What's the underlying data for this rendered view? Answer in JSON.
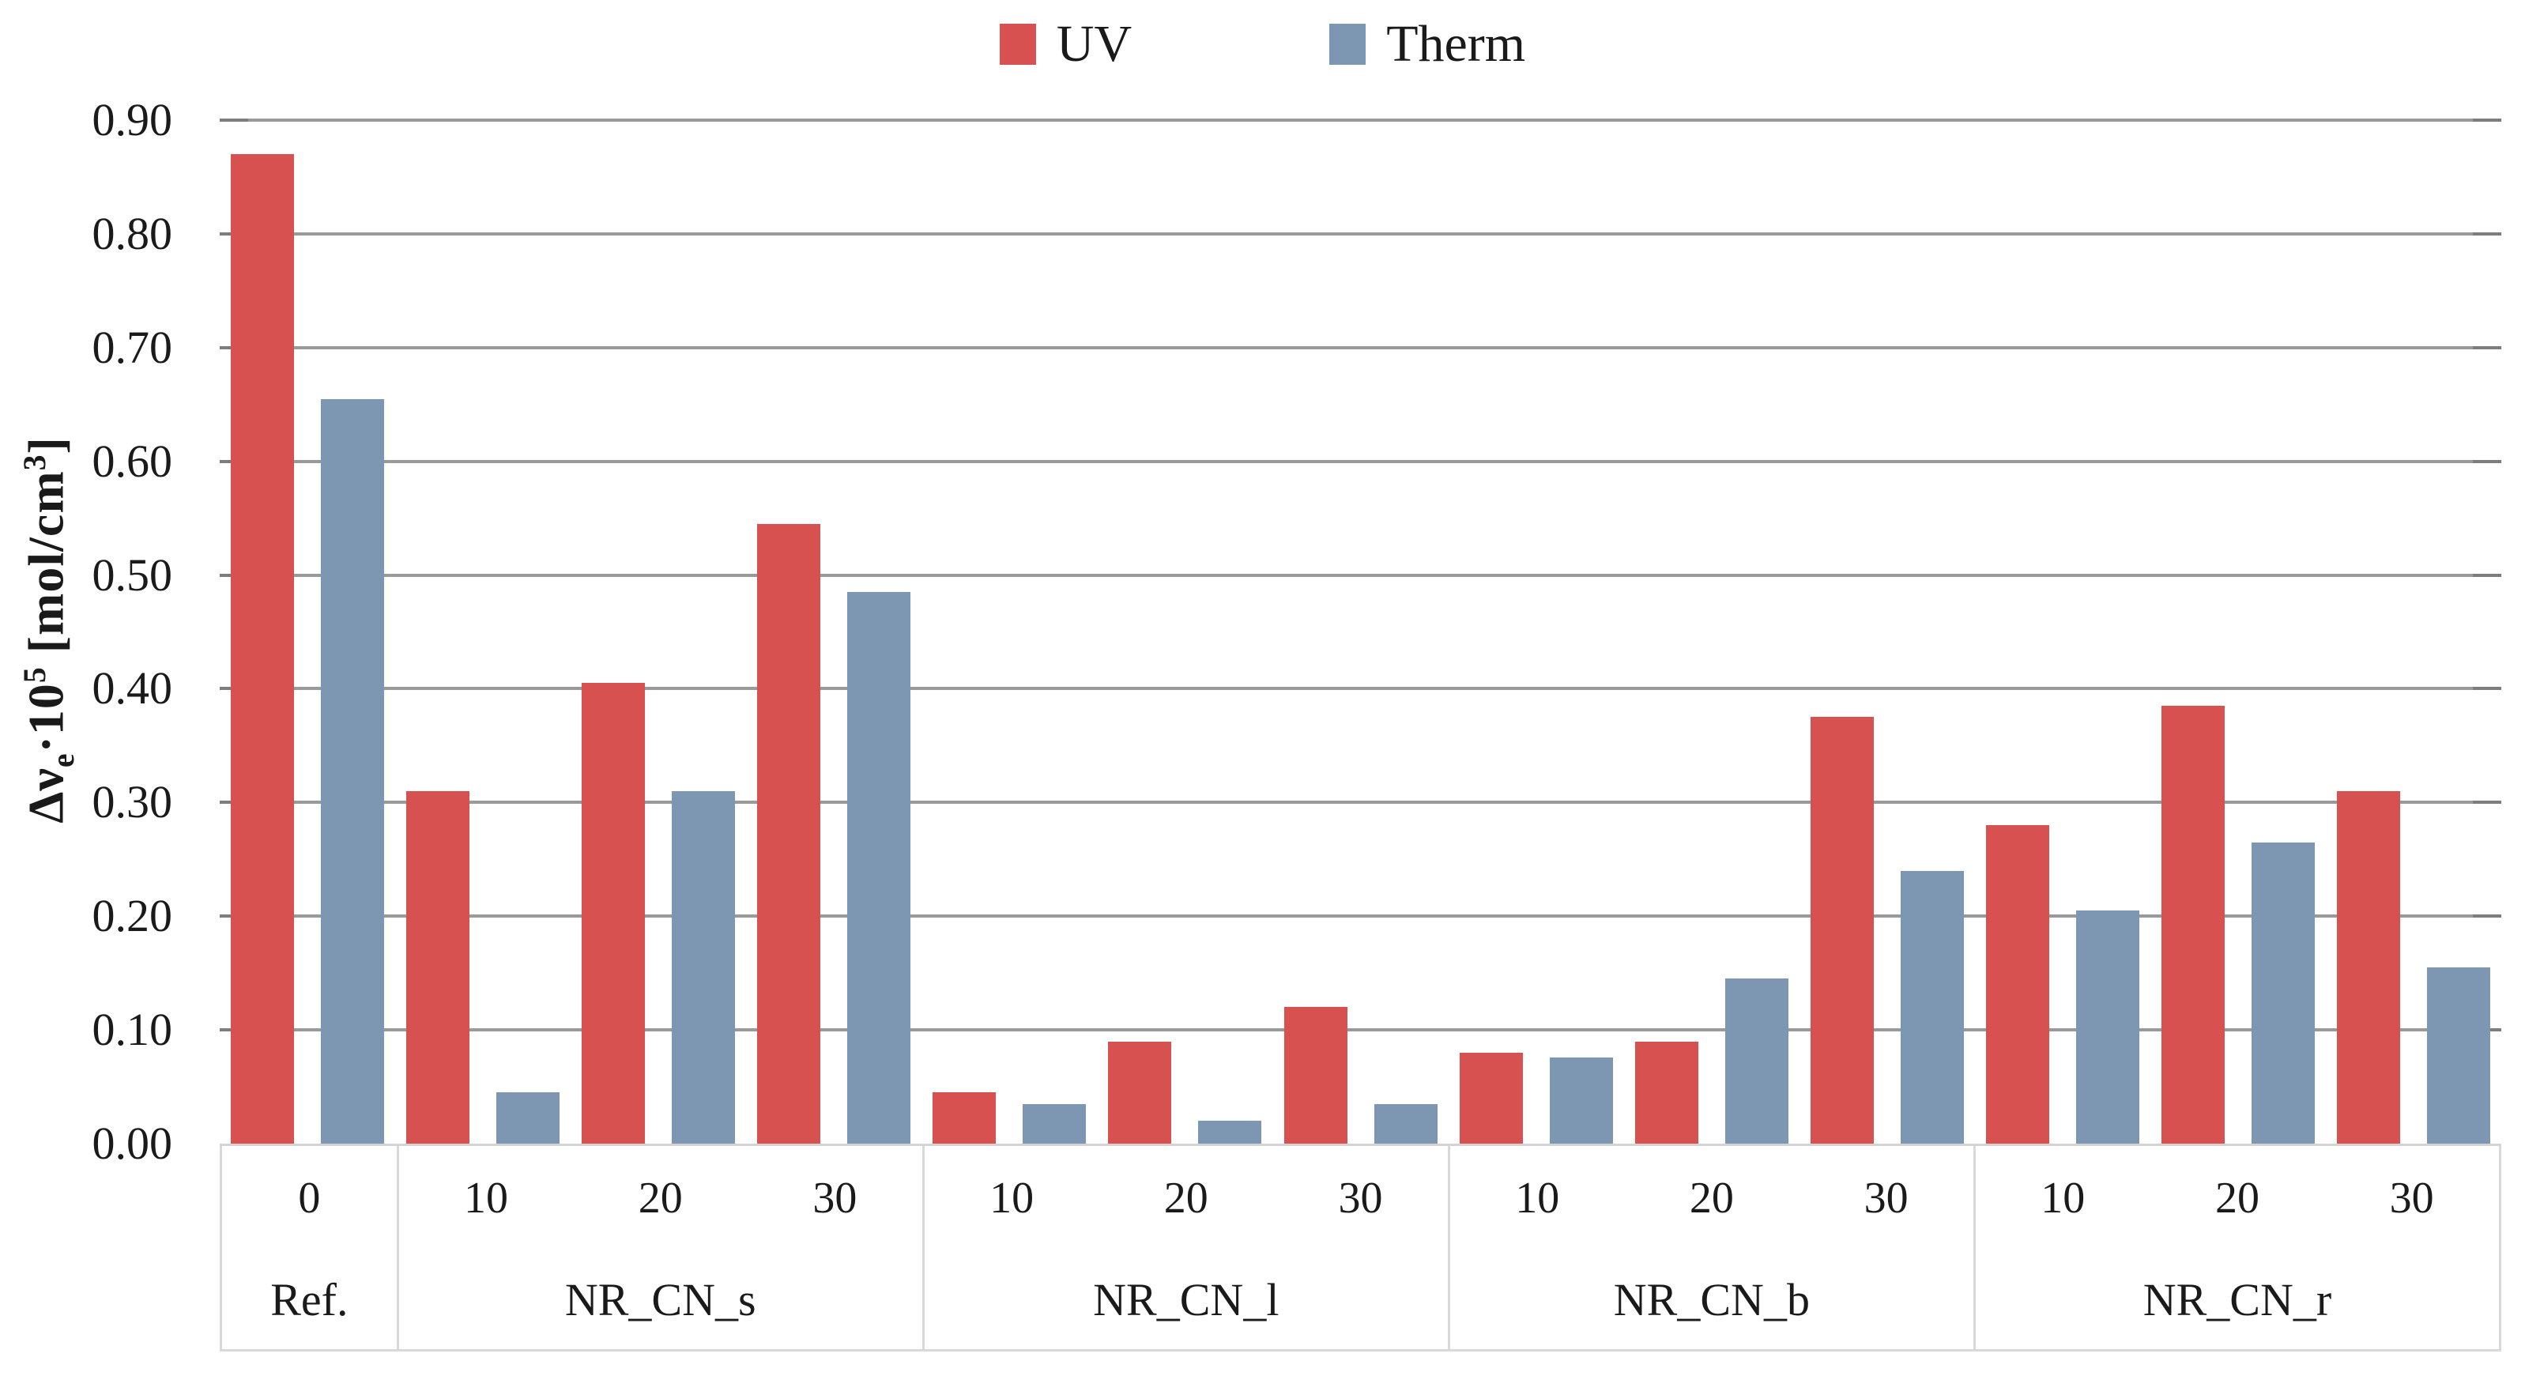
{
  "chart_data": {
    "type": "bar",
    "title": "",
    "legend": {
      "position": "top-center",
      "entries": [
        "UV",
        "Therm"
      ]
    },
    "series": [
      {
        "name": "UV",
        "color": "#D85151",
        "values": [
          [
            0.87
          ],
          [
            0.31,
            0.405,
            0.545
          ],
          [
            0.045,
            0.09,
            0.12
          ],
          [
            0.08,
            0.09,
            0.375
          ],
          [
            0.28,
            0.385,
            0.31
          ]
        ]
      },
      {
        "name": "Therm",
        "color": "#7D97B2",
        "values": [
          [
            0.655
          ],
          [
            0.045,
            0.31,
            0.485
          ],
          [
            0.035,
            0.02,
            0.035
          ],
          [
            0.076,
            0.145,
            0.24
          ],
          [
            0.205,
            0.265,
            0.155
          ]
        ]
      }
    ],
    "y_axis": {
      "label": "Δνe·10⁵ [mol/cm³]",
      "label_parts": {
        "prefix": "Δν",
        "subscript": "e",
        "mid": "·10",
        "superscript": "5",
        "unit_open": " [mol/cm",
        "unit_superscript": "3",
        "unit_close": "]"
      },
      "min": 0.0,
      "max": 0.9,
      "step": 0.1,
      "tick_labels": [
        "0.00",
        "0.10",
        "0.20",
        "0.30",
        "0.40",
        "0.50",
        "0.60",
        "0.70",
        "0.80",
        "0.90"
      ],
      "grid": true
    },
    "x_axis": {
      "groups": [
        {
          "label": "Ref.",
          "ticks": [
            "0"
          ]
        },
        {
          "label": "NR_CN_s",
          "ticks": [
            "10",
            "20",
            "30"
          ]
        },
        {
          "label": "NR_CN_l",
          "ticks": [
            "10",
            "20",
            "30"
          ]
        },
        {
          "label": "NR_CN_b",
          "ticks": [
            "10",
            "20",
            "30"
          ]
        },
        {
          "label": "NR_CN_r",
          "ticks": [
            "10",
            "20",
            "30"
          ]
        }
      ]
    }
  },
  "colors": {
    "grid": "#9A9A9A",
    "grid_tip": "#7D7D7D",
    "band_line": "#D9D9D9",
    "background": "#FFFFFF",
    "text": "#1A1A1A"
  }
}
